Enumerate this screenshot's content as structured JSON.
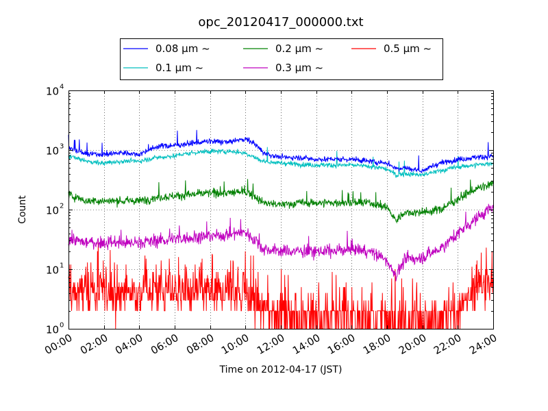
{
  "chart_data": {
    "type": "line",
    "title": "opc_20120417_000000.txt",
    "xlabel": "Time on 2012-04-17 (JST)",
    "ylabel": "Count",
    "y_scale": "log",
    "ylim": [
      1,
      10000
    ],
    "xlim": [
      "00:00",
      "24:00"
    ],
    "x_ticks": [
      "00:00",
      "02:00",
      "04:00",
      "06:00",
      "08:00",
      "10:00",
      "12:00",
      "14:00",
      "16:00",
      "18:00",
      "20:00",
      "22:00",
      "24:00"
    ],
    "y_ticks": [
      {
        "value": 1,
        "base": "10",
        "exp": "0"
      },
      {
        "value": 10,
        "base": "10",
        "exp": "1"
      },
      {
        "value": 100,
        "base": "10",
        "exp": "2"
      },
      {
        "value": 1000,
        "base": "10",
        "exp": "3"
      },
      {
        "value": 10000,
        "base": "10",
        "exp": "4"
      }
    ],
    "grid": true,
    "legend_position": "top-center",
    "x_hours": [
      0,
      1,
      2,
      3,
      4,
      5,
      6,
      7,
      8,
      9,
      10,
      10.5,
      11,
      12,
      13,
      14,
      15,
      16,
      17,
      18,
      18.5,
      19,
      20,
      21,
      22,
      23,
      24
    ],
    "series": [
      {
        "name": "0.08 μm ~",
        "color": "#0000ff",
        "noise": 0.04,
        "values": [
          1100,
          850,
          850,
          900,
          850,
          1150,
          1200,
          1300,
          1400,
          1350,
          1550,
          1300,
          900,
          750,
          750,
          700,
          700,
          700,
          650,
          600,
          500,
          500,
          450,
          600,
          700,
          750,
          800
        ]
      },
      {
        "name": "0.1 μm ~",
        "color": "#00bfbf",
        "noise": 0.035,
        "values": [
          800,
          650,
          600,
          650,
          650,
          750,
          800,
          900,
          950,
          950,
          900,
          750,
          650,
          600,
          580,
          560,
          560,
          560,
          530,
          480,
          380,
          400,
          380,
          450,
          520,
          560,
          600
        ]
      },
      {
        "name": "0.2 μm ~",
        "color": "#008000",
        "noise": 0.06,
        "values": [
          180,
          140,
          140,
          140,
          140,
          160,
          170,
          180,
          190,
          190,
          200,
          170,
          130,
          120,
          130,
          130,
          130,
          130,
          130,
          110,
          65,
          90,
          90,
          100,
          150,
          220,
          270
        ]
      },
      {
        "name": "0.3 μm ~",
        "color": "#bf00bf",
        "noise": 0.09,
        "values": [
          32,
          28,
          28,
          28,
          28,
          30,
          32,
          34,
          36,
          38,
          42,
          32,
          22,
          20,
          20,
          20,
          20,
          22,
          20,
          14,
          8,
          14,
          16,
          22,
          40,
          70,
          110
        ]
      },
      {
        "name": "0.5 μm ~",
        "color": "#ff0000",
        "noise": 0.55,
        "values": [
          4,
          4,
          4,
          4,
          4,
          4,
          4,
          4,
          4,
          4,
          4,
          3,
          2,
          2,
          1.6,
          1.6,
          1.6,
          1.5,
          1.5,
          1.4,
          1.3,
          1.3,
          1.3,
          1.5,
          2,
          4,
          6
        ]
      }
    ]
  }
}
